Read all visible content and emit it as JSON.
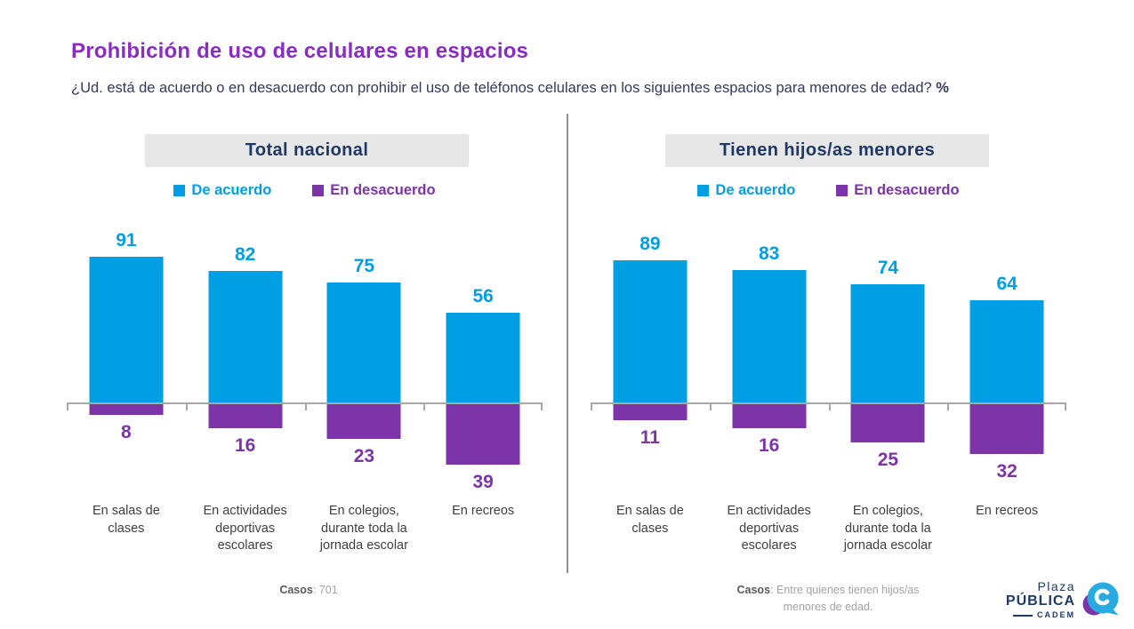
{
  "title": "Prohibición de uso de celulares en espacios",
  "subtitle": "¿Ud. está de acuerdo o en desacuerdo con prohibir el uso de teléfonos celulares en los siguientes espacios para menores de edad? ",
  "subtitle_suffix": "%",
  "legend": {
    "agree": "De acuerdo",
    "disagree": "En desacuerdo"
  },
  "colors": {
    "agree": "#009FE3",
    "disagree": "#7C34A8",
    "title": "#8A2BC4",
    "heading": "#1F3864",
    "navy-text": "#333B5C",
    "axis": "#A8A8A8",
    "header-bg": "#E8E7E7",
    "logo-navy": "#1E3A66"
  },
  "panels": [
    {
      "header": "Total nacional",
      "caption_label": "Casos",
      "caption_rest": ": 701"
    },
    {
      "header": "Tienen hijos/as menores",
      "caption_label": "Casos",
      "caption_rest": ": Entre quienes tienen hijos/as menores de edad."
    }
  ],
  "chart_data": [
    {
      "type": "bar",
      "title": "Total nacional",
      "subtitle_question": "¿Ud. está de acuerdo o en desacuerdo con prohibir el uso de teléfonos celulares en los siguientes espacios para menores de edad? %",
      "categories": [
        "En salas de clases",
        "En actividades deportivas escolares",
        "En colegios, durante toda la jornada escolar",
        "En recreos"
      ],
      "series": [
        {
          "name": "De acuerdo",
          "values": [
            91,
            82,
            75,
            56
          ]
        },
        {
          "name": "En desacuerdo",
          "values": [
            8,
            16,
            23,
            39
          ]
        }
      ],
      "ylabel": "%",
      "baseline": 0,
      "diverging": true,
      "grid": false,
      "legend_position": "top",
      "ylim": [
        -45,
        100
      ]
    },
    {
      "type": "bar",
      "title": "Tienen hijos/as menores",
      "subtitle_question": "¿Ud. está de acuerdo o en desacuerdo con prohibir el uso de teléfonos celulares en los siguientes espacios para menores de edad? %",
      "categories": [
        "En salas de clases",
        "En actividades deportivas escolares",
        "En colegios, durante toda la jornada escolar",
        "En recreos"
      ],
      "series": [
        {
          "name": "De acuerdo",
          "values": [
            89,
            83,
            74,
            64
          ]
        },
        {
          "name": "En desacuerdo",
          "values": [
            11,
            16,
            25,
            32
          ]
        }
      ],
      "ylabel": "%",
      "baseline": 0,
      "diverging": true,
      "grid": false,
      "legend_position": "top",
      "ylim": [
        -45,
        100
      ]
    }
  ],
  "logo": {
    "line1": "Plaza",
    "line2": "PÚBLICA",
    "line3": "CADEM"
  }
}
